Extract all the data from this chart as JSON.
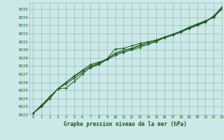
{
  "title": "Graphe pression niveau de la mer (hPa)",
  "xlabel": "Graphe pression niveau de la mer (hPa)",
  "xlim": [
    -0.5,
    23
  ],
  "ylim": [
    1022,
    1035.8
  ],
  "yticks": [
    1022,
    1023,
    1024,
    1025,
    1026,
    1027,
    1028,
    1029,
    1030,
    1031,
    1032,
    1033,
    1034,
    1035
  ],
  "xticks": [
    0,
    1,
    2,
    3,
    4,
    5,
    6,
    7,
    8,
    9,
    10,
    11,
    12,
    13,
    14,
    15,
    16,
    17,
    18,
    19,
    20,
    21,
    22,
    23
  ],
  "bg_color": "#cce8e8",
  "grid_color": "#99bbbb",
  "line_color": "#1a5c1a",
  "series": [
    [
      1022.2,
      1023.1,
      1024.0,
      1025.2,
      1025.3,
      1026.1,
      1027.0,
      1027.9,
      1028.3,
      1028.9,
      1030.1,
      1030.2,
      1030.5,
      1030.8,
      1031.0,
      1031.2,
      1031.5,
      1031.8,
      1032.2,
      1032.6,
      1033.0,
      1033.4,
      1034.2,
      1035.2
    ],
    [
      1022.2,
      1023.2,
      1024.2,
      1025.2,
      1026.0,
      1026.8,
      1027.5,
      1028.2,
      1028.5,
      1028.8,
      1029.5,
      1029.8,
      1030.1,
      1030.5,
      1030.7,
      1031.1,
      1031.5,
      1031.9,
      1032.3,
      1032.8,
      1033.2,
      1033.6,
      1034.0,
      1035.3
    ],
    [
      1022.2,
      1023.0,
      1024.0,
      1025.2,
      1025.8,
      1026.5,
      1027.2,
      1027.8,
      1028.2,
      1028.8,
      1029.3,
      1029.7,
      1030.0,
      1030.3,
      1030.7,
      1031.0,
      1031.5,
      1031.8,
      1032.2,
      1032.7,
      1033.1,
      1033.5,
      1034.1,
      1035.1
    ],
    [
      1022.2,
      1023.0,
      1024.2,
      1025.2,
      1026.0,
      1026.7,
      1027.4,
      1028.0,
      1028.4,
      1028.9,
      1029.6,
      1030.0,
      1030.2,
      1030.6,
      1030.9,
      1031.2,
      1031.6,
      1031.9,
      1032.3,
      1032.7,
      1033.1,
      1033.5,
      1034.0,
      1035.0
    ]
  ]
}
